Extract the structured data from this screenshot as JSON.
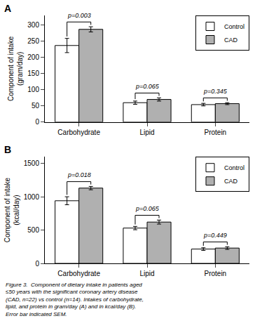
{
  "chart_data": [
    {
      "type": "bar",
      "title": "A",
      "ylabel": "Component of intake\n(gram/day)",
      "categories": [
        "Carbohydrate",
        "Lipid",
        "Protein"
      ],
      "series": [
        {
          "name": "Control",
          "color": "#ffffff",
          "values": [
            237,
            60,
            54
          ],
          "errors": [
            22,
            5,
            4
          ]
        },
        {
          "name": "CAD",
          "color": "#b0b0b0",
          "values": [
            287,
            70,
            57
          ],
          "errors": [
            8,
            5,
            3
          ]
        }
      ],
      "annotations": [
        {
          "category": "Carbohydrate",
          "text": "p=0.003"
        },
        {
          "category": "Lipid",
          "text": "p=0.065"
        },
        {
          "category": "Protein",
          "text": "p=0.345"
        }
      ],
      "ylim": [
        0,
        330
      ],
      "yticks": [
        0,
        50,
        100,
        150,
        200,
        250,
        300
      ],
      "grid": false,
      "legend": "upper right"
    },
    {
      "type": "bar",
      "title": "B",
      "ylabel": "Component of intake\n(kcal/day)",
      "categories": [
        "Carbohydrate",
        "Lipid",
        "Protein"
      ],
      "series": [
        {
          "name": "Control",
          "color": "#ffffff",
          "values": [
            940,
            530,
            215
          ],
          "errors": [
            60,
            25,
            20
          ]
        },
        {
          "name": "CAD",
          "color": "#b0b0b0",
          "values": [
            1130,
            620,
            230
          ],
          "errors": [
            25,
            30,
            20
          ]
        }
      ],
      "annotations": [
        {
          "category": "Carbohydrate",
          "text": "p=0.018"
        },
        {
          "category": "Lipid",
          "text": "p=0.065"
        },
        {
          "category": "Protein",
          "text": "p=0.449"
        }
      ],
      "ylim": [
        0,
        1600
      ],
      "yticks": [
        0,
        500,
        1000,
        1500
      ],
      "grid": false,
      "legend": "upper right"
    }
  ],
  "caption": [
    "Figure 3.  Component of dietary intake in patients aged",
    "≤50 years with the significant coronary artery disease",
    "(CAD, n=22) vs control (n=14). Intakes of carbohydrate,",
    "lipid, and protein in gram/day (A) and in kcal/day (B).",
    "Error bar indicated SEM."
  ]
}
